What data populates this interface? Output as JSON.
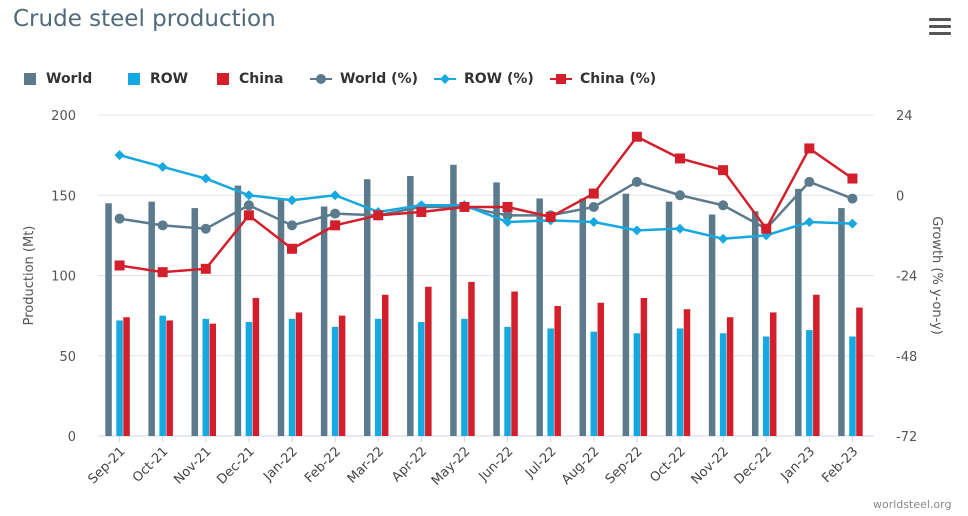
{
  "title": "Crude steel production",
  "menu_icon": "hamburger-menu-icon",
  "credit": "worldsteel.org",
  "colors": {
    "World": "#5b7b8c",
    "ROW": "#16a8e0",
    "China": "#d21f2b",
    "World (%)": "#5b7b8c",
    "ROW (%)": "#16a8e0",
    "China (%)": "#d21f2b"
  },
  "legend": [
    {
      "label": "World",
      "type": "bar"
    },
    {
      "label": "ROW",
      "type": "bar"
    },
    {
      "label": "China",
      "type": "bar"
    },
    {
      "label": "World (%)",
      "type": "line",
      "marker": "circle"
    },
    {
      "label": "ROW (%)",
      "type": "line",
      "marker": "diamond"
    },
    {
      "label": "China (%)",
      "type": "line",
      "marker": "square"
    }
  ],
  "chart_data": {
    "type": "bar",
    "categories": [
      "Sep-21",
      "Oct-21",
      "Nov-21",
      "Dec-21",
      "Jan-22",
      "Feb-22",
      "Mar-22",
      "Apr-22",
      "May-22",
      "Jun-22",
      "Jul-22",
      "Aug-22",
      "Sep-22",
      "Oct-22",
      "Nov-22",
      "Dec-22",
      "Jan-23",
      "Feb-23"
    ],
    "series": [
      {
        "name": "World",
        "type": "bar",
        "axis": "left",
        "values": [
          145,
          146,
          142,
          156,
          148,
          143,
          160,
          162,
          169,
          158,
          148,
          148,
          151,
          146,
          138,
          140,
          154,
          142
        ]
      },
      {
        "name": "ROW",
        "type": "bar",
        "axis": "left",
        "values": [
          72,
          75,
          73,
          71,
          73,
          68,
          73,
          71,
          73,
          68,
          67,
          65,
          64,
          67,
          64,
          62,
          66,
          62
        ]
      },
      {
        "name": "China",
        "type": "bar",
        "axis": "left",
        "values": [
          74,
          72,
          70,
          86,
          77,
          75,
          88,
          93,
          96,
          90,
          81,
          83,
          86,
          79,
          74,
          77,
          88,
          80
        ]
      },
      {
        "name": "World (%)",
        "type": "line",
        "axis": "right",
        "values": [
          -7.0,
          -9.0,
          -10.0,
          -3.0,
          -9.0,
          -5.5,
          -6.0,
          -3.5,
          -3.5,
          -6.0,
          -6.0,
          -3.5,
          4.0,
          0.0,
          -3.0,
          -10.0,
          4.0,
          -1.0
        ]
      },
      {
        "name": "ROW (%)",
        "type": "line",
        "axis": "right",
        "values": [
          12.0,
          8.5,
          5.0,
          0.0,
          -1.5,
          0.0,
          -5.0,
          -3.0,
          -3.0,
          -8.0,
          -7.5,
          -8.0,
          -10.5,
          -10.0,
          -13.0,
          -12.0,
          -8.0,
          -8.5
        ]
      },
      {
        "name": "China (%)",
        "type": "line",
        "axis": "right",
        "values": [
          -21.0,
          -23.0,
          -22.0,
          -6.0,
          -16.0,
          -9.0,
          -6.0,
          -5.0,
          -3.5,
          -3.5,
          -6.5,
          0.5,
          17.5,
          11.0,
          7.5,
          -10.0,
          14.0,
          5.0
        ]
      }
    ],
    "ylabel": "Production (Mt)",
    "ylabel_right": "Growth (% y-on-y)",
    "ylim": [
      0,
      200
    ],
    "ylim_right": [
      -72,
      24
    ],
    "yticks": [
      0,
      50,
      100,
      150,
      200
    ],
    "yticks_right": [
      -72,
      -48,
      -24,
      0,
      24
    ],
    "grid": true,
    "legend_position": "top-left"
  }
}
